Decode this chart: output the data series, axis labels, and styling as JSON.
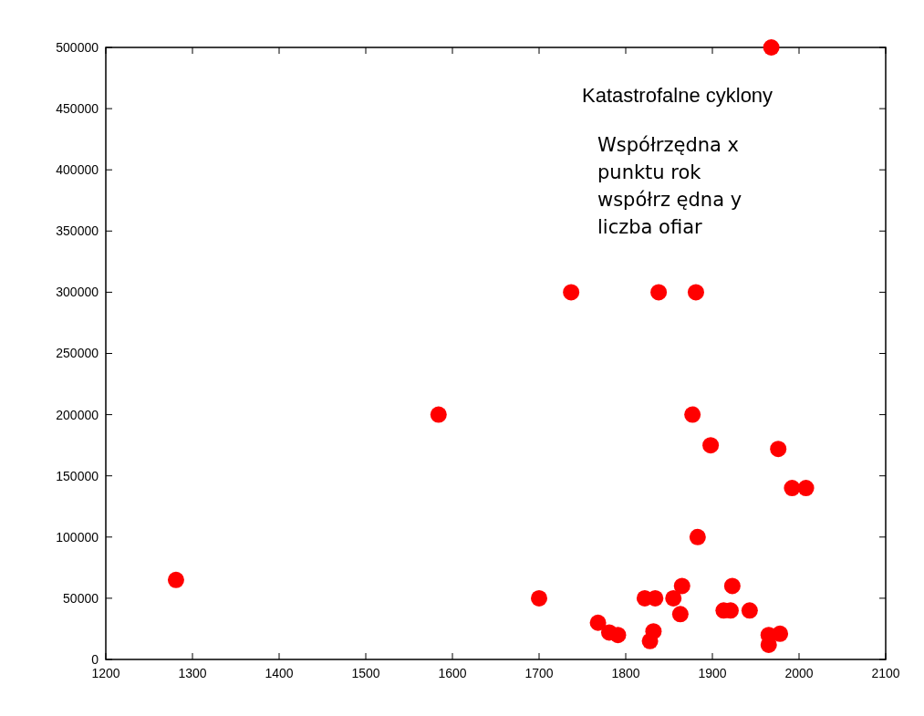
{
  "chart_data": {
    "type": "scatter",
    "title": "Katastrofalne cyklony",
    "annotations": [
      "Współrzędna x punktu rok współrz ędna y liczba ofiar"
    ],
    "x": [
      1281,
      1584,
      1700,
      1737,
      1838,
      1881,
      1877,
      1898,
      1976,
      1992,
      2008,
      1883,
      1968,
      1768,
      1781,
      1791,
      1822,
      1834,
      1828,
      1832,
      1855,
      1865,
      1863,
      1913,
      1921,
      1923,
      1943,
      1965,
      1965,
      1978
    ],
    "series": [
      {
        "color": "#ff0000",
        "values": [
          65000,
          200000,
          50000,
          300000,
          300000,
          300000,
          200000,
          175000,
          172000,
          140000,
          140000,
          100000,
          500000,
          30000,
          22000,
          20000,
          50000,
          50000,
          15000,
          23000,
          50000,
          60000,
          37000,
          40000,
          40000,
          60000,
          40000,
          20000,
          12000,
          21000
        ]
      }
    ],
    "xlim": [
      1200,
      2100
    ],
    "xticks": [
      1200,
      1300,
      1400,
      1500,
      1600,
      1700,
      1800,
      1900,
      2000,
      2100
    ],
    "ylim": [
      0,
      500000
    ],
    "yticks": [
      0,
      50000,
      100000,
      150000,
      200000,
      250000,
      300000,
      350000,
      400000,
      450000,
      500000
    ],
    "grid": false,
    "marker": "circle"
  }
}
